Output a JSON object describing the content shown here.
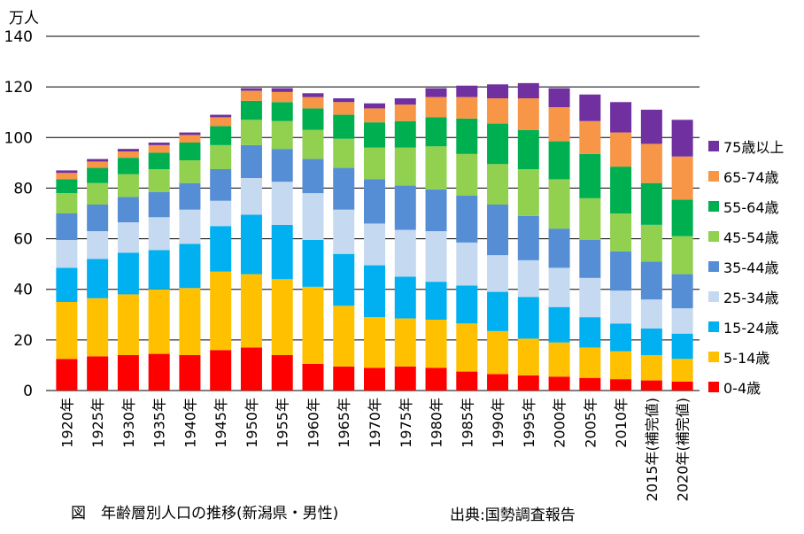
{
  "chart_data": {
    "type": "bar",
    "stacked": true,
    "unit_label": "万人",
    "ylim": [
      0,
      140
    ],
    "yticks": [
      0,
      20,
      40,
      60,
      80,
      100,
      120,
      140
    ],
    "grid": true,
    "legend_position": "right",
    "categories": [
      "1920年",
      "1925年",
      "1930年",
      "1935年",
      "1940年",
      "1945年",
      "1950年",
      "1955年",
      "1960年",
      "1965年",
      "1970年",
      "1975年",
      "1980年",
      "1985年",
      "1990年",
      "1995年",
      "2000年",
      "2005年",
      "2010年",
      "2015年(補完値)",
      "2020年(補完値)"
    ],
    "series": [
      {
        "name": "0-4歳",
        "color": "#ff0000",
        "values": [
          12.5,
          13.5,
          14,
          14.5,
          14,
          16,
          17,
          14,
          10.5,
          9.5,
          9,
          9.5,
          9,
          7.5,
          6.5,
          6,
          5.5,
          5,
          4.5,
          4,
          3.5
        ]
      },
      {
        "name": "5-14歳",
        "color": "#ffc000",
        "values": [
          22.5,
          23,
          24,
          25.5,
          26.5,
          31,
          29,
          30,
          30.5,
          24,
          20,
          19,
          19,
          19,
          17,
          14.5,
          13.5,
          12,
          11,
          10,
          9
        ]
      },
      {
        "name": "15-24歳",
        "color": "#00b0f0",
        "values": [
          13.5,
          15.5,
          16.5,
          15.5,
          17.5,
          18,
          23.5,
          21.5,
          18.5,
          20.5,
          20.5,
          16.5,
          15,
          15,
          15.5,
          16.5,
          14,
          12,
          11,
          10.5,
          10
        ]
      },
      {
        "name": "25-34歳",
        "color": "#c5d9f1",
        "values": [
          11,
          11,
          12,
          13,
          13.5,
          10,
          14.5,
          17,
          18.5,
          17.5,
          16.5,
          18.5,
          20,
          17,
          14.5,
          14.5,
          15.5,
          15.5,
          13,
          11.5,
          10
        ]
      },
      {
        "name": "35-44歳",
        "color": "#558ed5",
        "values": [
          10.5,
          10.5,
          10,
          10,
          10.5,
          12.5,
          13,
          13,
          13.5,
          16.5,
          17.5,
          17.5,
          16.5,
          18.5,
          20,
          17.5,
          15.5,
          15,
          15.5,
          15,
          13.5
        ]
      },
      {
        "name": "45-54歳",
        "color": "#92d050",
        "values": [
          8,
          8.5,
          9,
          9,
          9,
          9.5,
          10,
          11,
          11.5,
          11.5,
          12.5,
          15,
          17,
          16.5,
          16,
          18.5,
          19.5,
          16.5,
          15,
          14.5,
          15
        ]
      },
      {
        "name": "55-64歳",
        "color": "#00b050",
        "values": [
          5.5,
          6,
          6.5,
          6.5,
          7,
          7.5,
          7.5,
          7.5,
          8.5,
          9.5,
          10,
          10.5,
          11.5,
          14,
          16,
          15.5,
          15,
          17.5,
          18.5,
          16.5,
          14.5
        ]
      },
      {
        "name": "65-74歳",
        "color": "#f79646",
        "values": [
          2.5,
          2.5,
          2.5,
          3,
          3,
          3.5,
          4,
          4,
          4.5,
          5,
          5.5,
          6.5,
          8,
          8.5,
          10,
          12.5,
          13.5,
          13,
          13.5,
          15.5,
          17
        ]
      },
      {
        "name": "75歳以上",
        "color": "#7030a0",
        "values": [
          1,
          1,
          1,
          1,
          1,
          1,
          1,
          1.5,
          1.5,
          1.5,
          2,
          2.5,
          3.5,
          4.5,
          5.5,
          6,
          7.5,
          10.5,
          12,
          13.5,
          14.5
        ]
      }
    ]
  },
  "caption": "図　年齢層別人口の推移(新潟県・男性)",
  "source": "出典:国勢調査報告"
}
